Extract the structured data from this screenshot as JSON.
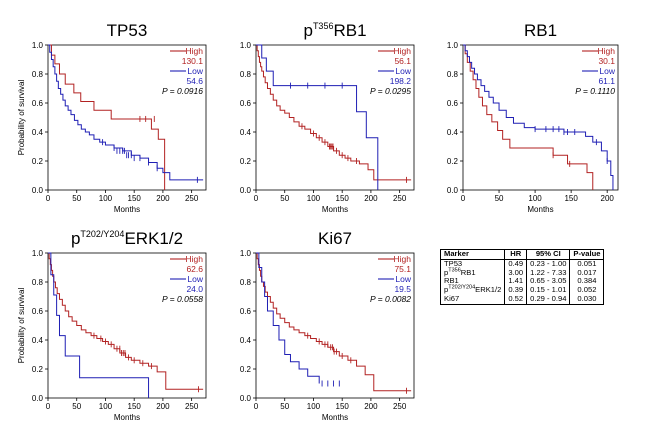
{
  "chart_data": [
    {
      "type": "line",
      "title_base": "TP53",
      "title_sup": "",
      "title_suffix": "",
      "xlabel": "Months",
      "ylabel": "Probability of survival",
      "xlim": [
        0,
        275
      ],
      "ylim": [
        0,
        1.0
      ],
      "xticks": [
        0,
        50,
        100,
        150,
        200,
        250
      ],
      "yticks": [
        0.0,
        0.2,
        0.4,
        0.6,
        0.8,
        1.0
      ],
      "legend": {
        "high_label": "High",
        "high_value": "130.1",
        "low_label": "Low",
        "low_value": "54.6"
      },
      "pvalue": "P = 0.0916",
      "series": [
        {
          "name": "High",
          "color": "#b22222",
          "x": [
            0,
            6,
            12,
            20,
            30,
            45,
            57,
            80,
            100,
            110,
            180,
            192,
            203
          ],
          "y": [
            1.0,
            0.93,
            0.87,
            0.8,
            0.73,
            0.67,
            0.61,
            0.55,
            0.55,
            0.49,
            0.42,
            0.35,
            0.0
          ],
          "censor_x": [
            160,
            170,
            185
          ],
          "censor_y": [
            0.49,
            0.49,
            0.49
          ]
        },
        {
          "name": "Low",
          "color": "#1f1fb4",
          "x": [
            0,
            3,
            6,
            9,
            12,
            15,
            18,
            22,
            26,
            30,
            35,
            40,
            46,
            52,
            58,
            65,
            72,
            80,
            90,
            100,
            115,
            130,
            145,
            160,
            175,
            190,
            200,
            212,
            270
          ],
          "y": [
            1.0,
            0.95,
            0.9,
            0.85,
            0.8,
            0.75,
            0.7,
            0.66,
            0.62,
            0.58,
            0.55,
            0.52,
            0.48,
            0.45,
            0.42,
            0.4,
            0.38,
            0.35,
            0.33,
            0.31,
            0.29,
            0.27,
            0.24,
            0.22,
            0.19,
            0.15,
            0.12,
            0.07,
            0.07
          ],
          "censor_x": [
            95,
            115,
            120,
            125,
            130,
            133,
            137,
            140,
            145,
            150,
            160,
            175,
            190,
            260
          ],
          "censor_y": [
            0.33,
            0.29,
            0.27,
            0.27,
            0.27,
            0.27,
            0.24,
            0.24,
            0.24,
            0.22,
            0.22,
            0.19,
            0.15,
            0.07
          ]
        }
      ]
    },
    {
      "type": "line",
      "title_base": "p",
      "title_sup": "T356",
      "title_suffix": "RB1",
      "xlabel": "Months",
      "ylabel": "",
      "xlim": [
        0,
        275
      ],
      "ylim": [
        0,
        1.0
      ],
      "xticks": [
        0,
        50,
        100,
        150,
        200,
        250
      ],
      "yticks": [
        0.0,
        0.2,
        0.4,
        0.6,
        0.8,
        1.0
      ],
      "legend": {
        "high_label": "High",
        "high_value": "56.1",
        "low_label": "Low",
        "low_value": "198.2"
      },
      "pvalue": "P = 0.0295",
      "series": [
        {
          "name": "High",
          "color": "#b22222",
          "x": [
            0,
            2,
            4,
            6,
            8,
            10,
            13,
            16,
            20,
            25,
            30,
            36,
            42,
            50,
            58,
            66,
            75,
            85,
            95,
            105,
            115,
            125,
            135,
            145,
            155,
            165,
            180,
            195,
            205,
            270
          ],
          "y": [
            1.0,
            0.96,
            0.92,
            0.88,
            0.85,
            0.82,
            0.78,
            0.74,
            0.7,
            0.66,
            0.62,
            0.58,
            0.55,
            0.53,
            0.5,
            0.47,
            0.44,
            0.42,
            0.39,
            0.36,
            0.33,
            0.3,
            0.27,
            0.24,
            0.22,
            0.2,
            0.18,
            0.14,
            0.07,
            0.07
          ],
          "censor_x": [
            80,
            100,
            110,
            120,
            128,
            130,
            132,
            134,
            140,
            150,
            160,
            175,
            262
          ],
          "censor_y": [
            0.44,
            0.39,
            0.36,
            0.33,
            0.3,
            0.3,
            0.3,
            0.3,
            0.27,
            0.24,
            0.22,
            0.2,
            0.07
          ]
        },
        {
          "name": "Low",
          "color": "#1f1fb4",
          "x": [
            0,
            10,
            18,
            30,
            175,
            192,
            212
          ],
          "y": [
            1.0,
            0.91,
            0.82,
            0.72,
            0.54,
            0.36,
            0.0
          ],
          "censor_x": [
            60,
            90,
            120,
            150
          ],
          "censor_y": [
            0.72,
            0.72,
            0.72,
            0.72
          ]
        }
      ]
    },
    {
      "type": "line",
      "title_base": "RB1",
      "title_sup": "",
      "title_suffix": "",
      "xlabel": "Months",
      "ylabel": "",
      "xlim": [
        0,
        215
      ],
      "ylim": [
        0,
        1.0
      ],
      "xticks": [
        0,
        50,
        100,
        150,
        200
      ],
      "yticks": [
        0.0,
        0.2,
        0.4,
        0.6,
        0.8,
        1.0
      ],
      "legend": {
        "high_label": "High",
        "high_value": "30.1",
        "low_label": "Low",
        "low_value": "61.1"
      },
      "pvalue": "P = 0.1110",
      "series": [
        {
          "name": "High",
          "color": "#b22222",
          "x": [
            0,
            3,
            6,
            10,
            14,
            18,
            22,
            27,
            33,
            40,
            48,
            55,
            65,
            75,
            90,
            110,
            125,
            145,
            172,
            180
          ],
          "y": [
            1.0,
            0.94,
            0.88,
            0.82,
            0.76,
            0.7,
            0.64,
            0.58,
            0.52,
            0.47,
            0.41,
            0.35,
            0.29,
            0.29,
            0.29,
            0.29,
            0.24,
            0.18,
            0.12,
            0.0
          ],
          "censor_x": [
            125,
            148
          ],
          "censor_y": [
            0.24,
            0.18
          ]
        },
        {
          "name": "Low",
          "color": "#1f1fb4",
          "x": [
            0,
            3,
            6,
            9,
            12,
            16,
            20,
            25,
            30,
            36,
            42,
            50,
            60,
            70,
            85,
            100,
            120,
            140,
            160,
            170,
            180,
            192,
            200,
            205,
            208
          ],
          "y": [
            1.0,
            0.96,
            0.92,
            0.88,
            0.84,
            0.8,
            0.76,
            0.72,
            0.68,
            0.64,
            0.6,
            0.55,
            0.5,
            0.46,
            0.43,
            0.42,
            0.42,
            0.4,
            0.4,
            0.37,
            0.33,
            0.27,
            0.2,
            0.1,
            0.0
          ],
          "censor_x": [
            100,
            115,
            125,
            133,
            140,
            145,
            155,
            185,
            200
          ],
          "censor_y": [
            0.42,
            0.42,
            0.42,
            0.42,
            0.4,
            0.4,
            0.4,
            0.33,
            0.2
          ]
        }
      ]
    },
    {
      "type": "line",
      "title_base": "p",
      "title_sup": "T202/Y204",
      "title_suffix": "ERK1/2",
      "xlabel": "Months",
      "ylabel": "Probability of survival",
      "xlim": [
        0,
        275
      ],
      "ylim": [
        0,
        1.0
      ],
      "xticks": [
        0,
        50,
        100,
        150,
        200,
        250
      ],
      "yticks": [
        0.0,
        0.2,
        0.4,
        0.6,
        0.8,
        1.0
      ],
      "legend": {
        "high_label": "High",
        "high_value": "62.6",
        "low_label": "Low",
        "low_value": "24.0"
      },
      "pvalue": "P = 0.0558",
      "series": [
        {
          "name": "High",
          "color": "#b22222",
          "x": [
            0,
            2,
            4,
            6,
            8,
            10,
            13,
            16,
            20,
            25,
            30,
            36,
            42,
            50,
            58,
            66,
            75,
            85,
            95,
            105,
            115,
            125,
            135,
            145,
            160,
            175,
            190,
            205,
            270
          ],
          "y": [
            1.0,
            0.96,
            0.92,
            0.88,
            0.84,
            0.8,
            0.76,
            0.72,
            0.68,
            0.64,
            0.6,
            0.56,
            0.53,
            0.5,
            0.47,
            0.45,
            0.43,
            0.41,
            0.39,
            0.37,
            0.34,
            0.31,
            0.28,
            0.26,
            0.24,
            0.22,
            0.18,
            0.06,
            0.06
          ],
          "censor_x": [
            80,
            92,
            100,
            110,
            120,
            125,
            128,
            131,
            134,
            140,
            150,
            165,
            180,
            262
          ],
          "censor_y": [
            0.43,
            0.41,
            0.39,
            0.37,
            0.34,
            0.34,
            0.31,
            0.31,
            0.31,
            0.28,
            0.26,
            0.24,
            0.22,
            0.06
          ]
        },
        {
          "name": "Low",
          "color": "#1f1fb4",
          "x": [
            0,
            5,
            10,
            15,
            20,
            30,
            40,
            55,
            175
          ],
          "y": [
            1.0,
            0.85,
            0.71,
            0.57,
            0.43,
            0.29,
            0.29,
            0.14,
            0.0
          ],
          "censor_x": [],
          "censor_y": []
        }
      ]
    },
    {
      "type": "line",
      "title_base": "Ki67",
      "title_sup": "",
      "title_suffix": "",
      "xlabel": "Months",
      "ylabel": "",
      "xlim": [
        0,
        275
      ],
      "ylim": [
        0,
        1.0
      ],
      "xticks": [
        0,
        50,
        100,
        150,
        200,
        250
      ],
      "yticks": [
        0.0,
        0.2,
        0.4,
        0.6,
        0.8,
        1.0
      ],
      "legend": {
        "high_label": "High",
        "high_value": "75.1",
        "low_label": "Low",
        "low_value": "19.5"
      },
      "pvalue": "P = 0.0082",
      "series": [
        {
          "name": "High",
          "color": "#b22222",
          "x": [
            0,
            2,
            4,
            6,
            8,
            10,
            13,
            16,
            20,
            25,
            30,
            36,
            42,
            50,
            58,
            66,
            75,
            85,
            95,
            105,
            115,
            125,
            135,
            145,
            160,
            175,
            190,
            205,
            270
          ],
          "y": [
            1.0,
            0.96,
            0.92,
            0.88,
            0.84,
            0.8,
            0.77,
            0.73,
            0.7,
            0.66,
            0.62,
            0.58,
            0.55,
            0.52,
            0.49,
            0.47,
            0.45,
            0.43,
            0.41,
            0.39,
            0.37,
            0.35,
            0.32,
            0.29,
            0.26,
            0.22,
            0.16,
            0.05,
            0.05
          ],
          "censor_x": [
            90,
            110,
            120,
            125,
            130,
            133,
            136,
            140,
            150,
            165,
            262
          ],
          "censor_y": [
            0.43,
            0.39,
            0.37,
            0.37,
            0.35,
            0.35,
            0.32,
            0.32,
            0.29,
            0.26,
            0.05
          ]
        },
        {
          "name": "Low",
          "color": "#1f1fb4",
          "x": [
            0,
            5,
            10,
            15,
            20,
            30,
            40,
            50,
            60,
            75,
            90,
            110
          ],
          "y": [
            1.0,
            0.9,
            0.8,
            0.7,
            0.6,
            0.5,
            0.4,
            0.3,
            0.25,
            0.2,
            0.15,
            0.1
          ],
          "censor_x": [
            115,
            125,
            135,
            145
          ],
          "censor_y": [
            0.1,
            0.1,
            0.1,
            0.1
          ]
        }
      ]
    }
  ],
  "stats_table": {
    "headers": [
      "Marker",
      "HR",
      "95% CI",
      "P-value"
    ],
    "rows": [
      {
        "marker_base": "TP53",
        "marker_sup": "",
        "marker_suffix": "",
        "hr": "0.49",
        "ci": "0.23 - 1.00",
        "p": "0.051"
      },
      {
        "marker_base": "p",
        "marker_sup": "T356",
        "marker_suffix": "RB1",
        "hr": "3.00",
        "ci": "1.22 - 7.33",
        "p": "0.017"
      },
      {
        "marker_base": "RB1",
        "marker_sup": "",
        "marker_suffix": "",
        "hr": "1.41",
        "ci": "0.65 - 3.05",
        "p": "0.384"
      },
      {
        "marker_base": "p",
        "marker_sup": "T202/Y204",
        "marker_suffix": "ERK1/2",
        "hr": "0.39",
        "ci": "0.15 - 1.01",
        "p": "0.052"
      },
      {
        "marker_base": "Ki67",
        "marker_sup": "",
        "marker_suffix": "",
        "hr": "0.52",
        "ci": "0.29 - 0.94",
        "p": "0.030"
      }
    ]
  }
}
